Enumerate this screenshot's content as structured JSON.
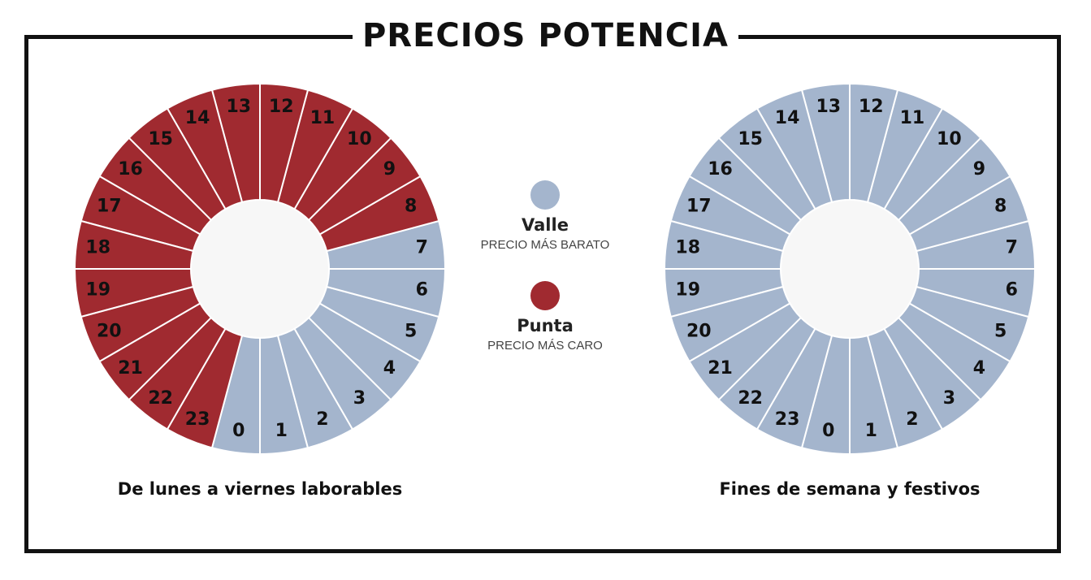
{
  "title": "PRECIOS POTENCIA",
  "colors": {
    "valle": "#a4b5cd",
    "punta": "#a02a30",
    "center": "#f7f7f7",
    "separator": "#ffffff"
  },
  "legend": {
    "valle": {
      "name": "Valle",
      "description": "PRECIO MÁS BARATO"
    },
    "punta": {
      "name": "Punta",
      "description": "PRECIO MÁS CARO"
    }
  },
  "wheels": [
    {
      "caption": "De lunes a viernes laborables",
      "hours": [
        {
          "label": "0",
          "period": "valle"
        },
        {
          "label": "1",
          "period": "valle"
        },
        {
          "label": "2",
          "period": "valle"
        },
        {
          "label": "3",
          "period": "valle"
        },
        {
          "label": "4",
          "period": "valle"
        },
        {
          "label": "5",
          "period": "valle"
        },
        {
          "label": "6",
          "period": "valle"
        },
        {
          "label": "7",
          "period": "valle"
        },
        {
          "label": "8",
          "period": "punta"
        },
        {
          "label": "9",
          "period": "punta"
        },
        {
          "label": "10",
          "period": "punta"
        },
        {
          "label": "11",
          "period": "punta"
        },
        {
          "label": "12",
          "period": "punta"
        },
        {
          "label": "13",
          "period": "punta"
        },
        {
          "label": "14",
          "period": "punta"
        },
        {
          "label": "15",
          "period": "punta"
        },
        {
          "label": "16",
          "period": "punta"
        },
        {
          "label": "17",
          "period": "punta"
        },
        {
          "label": "18",
          "period": "punta"
        },
        {
          "label": "19",
          "period": "punta"
        },
        {
          "label": "20",
          "period": "punta"
        },
        {
          "label": "21",
          "period": "punta"
        },
        {
          "label": "22",
          "period": "punta"
        },
        {
          "label": "23",
          "period": "punta"
        }
      ]
    },
    {
      "caption": "Fines de semana y festivos",
      "hours": [
        {
          "label": "0",
          "period": "valle"
        },
        {
          "label": "1",
          "period": "valle"
        },
        {
          "label": "2",
          "period": "valle"
        },
        {
          "label": "3",
          "period": "valle"
        },
        {
          "label": "4",
          "period": "valle"
        },
        {
          "label": "5",
          "period": "valle"
        },
        {
          "label": "6",
          "period": "valle"
        },
        {
          "label": "7",
          "period": "valle"
        },
        {
          "label": "8",
          "period": "valle"
        },
        {
          "label": "9",
          "period": "valle"
        },
        {
          "label": "10",
          "period": "valle"
        },
        {
          "label": "11",
          "period": "valle"
        },
        {
          "label": "12",
          "period": "valle"
        },
        {
          "label": "13",
          "period": "valle"
        },
        {
          "label": "14",
          "period": "valle"
        },
        {
          "label": "15",
          "period": "valle"
        },
        {
          "label": "16",
          "period": "valle"
        },
        {
          "label": "17",
          "period": "valle"
        },
        {
          "label": "18",
          "period": "valle"
        },
        {
          "label": "19",
          "period": "valle"
        },
        {
          "label": "20",
          "period": "valle"
        },
        {
          "label": "21",
          "period": "valle"
        },
        {
          "label": "22",
          "period": "valle"
        },
        {
          "label": "23",
          "period": "valle"
        }
      ]
    }
  ]
}
